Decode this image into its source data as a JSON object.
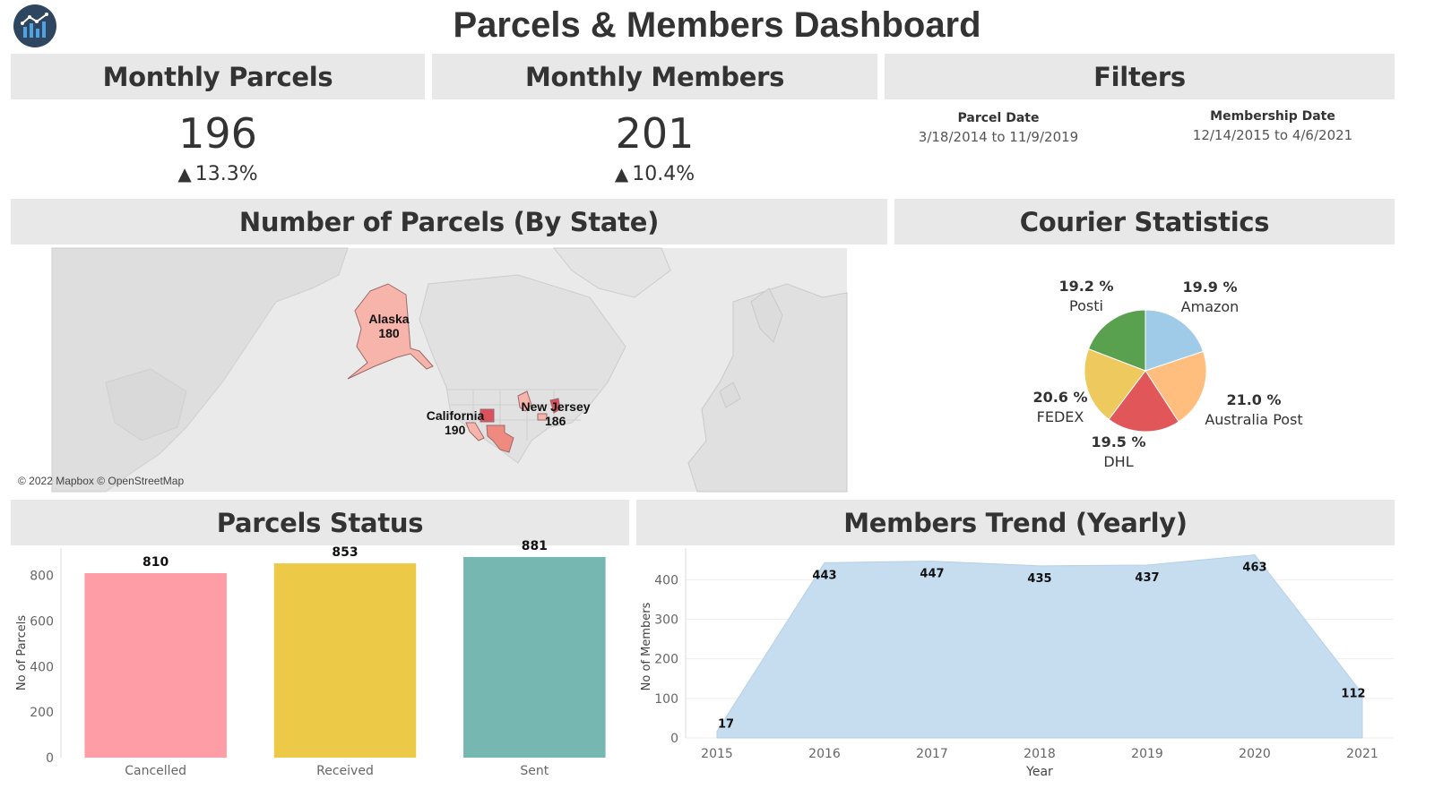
{
  "header": {
    "title": "Parcels & Members Dashboard",
    "logo_icon": "bar-chart-logo-icon"
  },
  "panels": {
    "monthly_parcels": {
      "title": "Monthly Parcels",
      "value": "196",
      "change": "13.3%",
      "trend_icon": "triangle-up-icon"
    },
    "monthly_members": {
      "title": "Monthly Members",
      "value": "201",
      "change": "10.4%",
      "trend_icon": "triangle-up-icon"
    },
    "filters": {
      "title": "Filters",
      "parcel_date_label": "Parcel Date",
      "parcel_date_range": "3/18/2014 to 11/9/2019",
      "membership_date_label": "Membership Date",
      "membership_date_range": "12/14/2015 to 4/6/2021"
    },
    "parcels_by_state": {
      "title": "Number of Parcels (By State)",
      "credit": "© 2022 Mapbox © OpenStreetMap"
    },
    "courier_statistics": {
      "title": "Courier Statistics"
    },
    "parcels_status": {
      "title": "Parcels Status"
    },
    "members_trend": {
      "title": "Members Trend (Yearly)"
    }
  },
  "chart_data": [
    {
      "type": "map",
      "labels": [
        {
          "state": "Alaska",
          "value": 180
        },
        {
          "state": "California",
          "value": 190
        },
        {
          "state": "New Jersey",
          "value": 186
        }
      ],
      "colors": {
        "light": "#f7b4aa",
        "mid": "#ee8a80",
        "dark": "#d9525e"
      }
    },
    {
      "type": "pie",
      "slices": [
        {
          "name": "Amazon",
          "pct_label": "19.9 %",
          "value": 19.9,
          "color": "#a0cbe8"
        },
        {
          "name": "Australia Post",
          "pct_label": "21.0 %",
          "value": 21.0,
          "color": "#ffbe7d"
        },
        {
          "name": "DHL",
          "pct_label": "19.5 %",
          "value": 19.5,
          "color": "#e15759"
        },
        {
          "name": "FEDEX",
          "pct_label": "20.6 %",
          "value": 20.6,
          "color": "#edc95e"
        },
        {
          "name": "Posti",
          "pct_label": "19.2 %",
          "value": 19.2,
          "color": "#59a14f"
        }
      ]
    },
    {
      "type": "bar",
      "categories": [
        "Cancelled",
        "Received",
        "Sent"
      ],
      "values": [
        810,
        853,
        881
      ],
      "colors": [
        "#ff9da7",
        "#edc948",
        "#76b7b2"
      ],
      "ylabel": "No of Parcels",
      "yticks": [
        0,
        200,
        400,
        600,
        800
      ],
      "ylim": [
        0,
        920
      ]
    },
    {
      "type": "area",
      "x": [
        "2015",
        "2016",
        "2017",
        "2018",
        "2019",
        "2020",
        "2021"
      ],
      "values": [
        17,
        443,
        447,
        435,
        437,
        463,
        112
      ],
      "color": "#c6dcef",
      "xlabel": "Year",
      "ylabel": "No of Members",
      "yticks": [
        0,
        100,
        200,
        300,
        400
      ],
      "ylim": [
        0,
        480
      ]
    }
  ]
}
